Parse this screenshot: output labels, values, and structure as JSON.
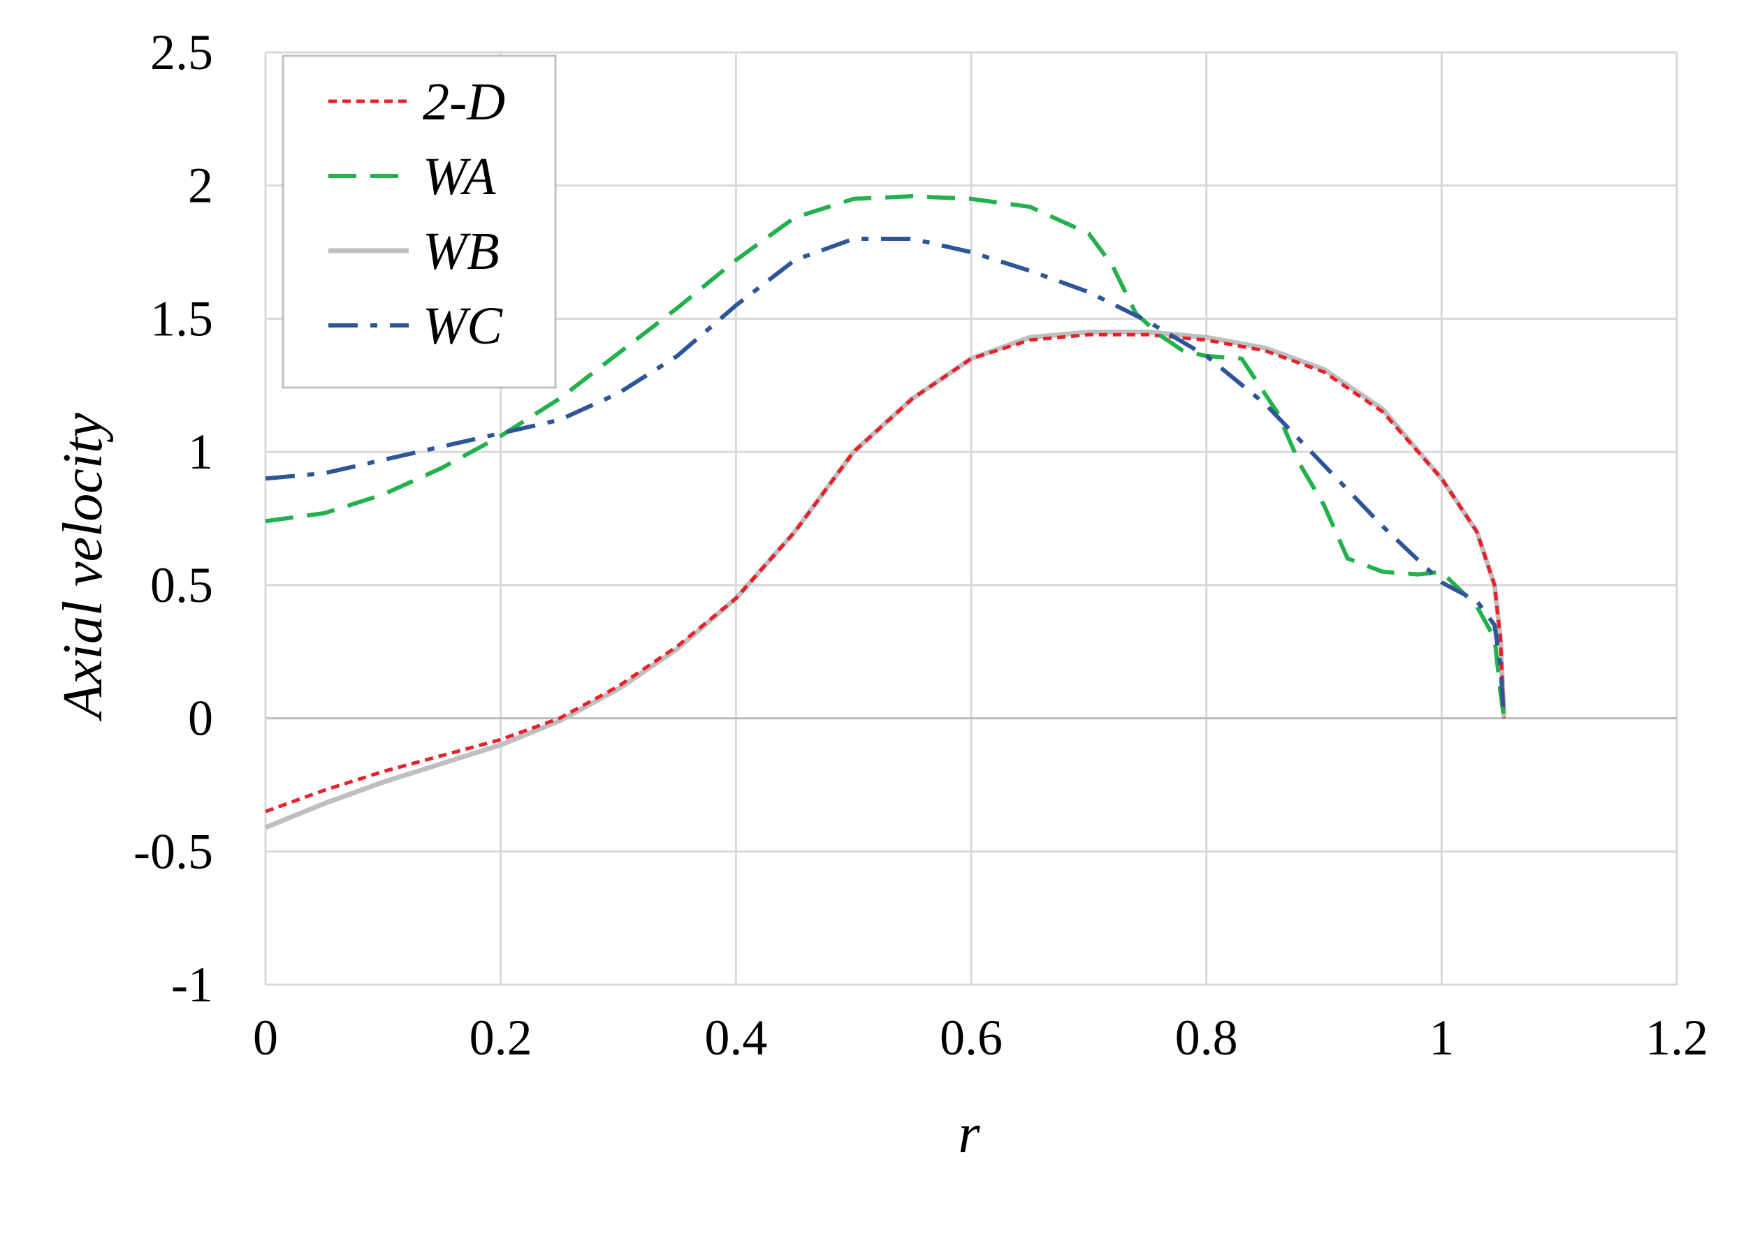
{
  "chart_data": {
    "type": "line",
    "xlabel": "r",
    "ylabel": "Axial velocity",
    "xlim": [
      0,
      1.2
    ],
    "ylim": [
      -1,
      2.5
    ],
    "xticks": [
      "0",
      "0.2",
      "0.4",
      "0.6",
      "0.8",
      "1",
      "1.2"
    ],
    "yticks": [
      "-1",
      "-0.5",
      "0",
      "0.5",
      "1",
      "1.5",
      "2",
      "2.5"
    ],
    "grid": true,
    "legend_position": "top-left",
    "series": [
      {
        "name": "2-D",
        "color": "#e8202a",
        "style": "dotted",
        "x": [
          0,
          0.05,
          0.1,
          0.15,
          0.2,
          0.25,
          0.3,
          0.35,
          0.4,
          0.45,
          0.5,
          0.55,
          0.6,
          0.65,
          0.7,
          0.75,
          0.8,
          0.85,
          0.9,
          0.95,
          1.0,
          1.03,
          1.045,
          1.05,
          1.053
        ],
        "y": [
          -0.35,
          -0.27,
          -0.2,
          -0.14,
          -0.08,
          0.0,
          0.12,
          0.27,
          0.45,
          0.7,
          1.0,
          1.2,
          1.35,
          1.42,
          1.44,
          1.44,
          1.42,
          1.38,
          1.3,
          1.15,
          0.9,
          0.7,
          0.5,
          0.3,
          0.0
        ]
      },
      {
        "name": "WA",
        "color": "#22b14c",
        "style": "dashed",
        "x": [
          0,
          0.05,
          0.1,
          0.15,
          0.2,
          0.25,
          0.3,
          0.35,
          0.4,
          0.45,
          0.5,
          0.55,
          0.6,
          0.65,
          0.7,
          0.72,
          0.74,
          0.76,
          0.78,
          0.8,
          0.83,
          0.86,
          0.88,
          0.9,
          0.92,
          0.95,
          0.98,
          1.0,
          1.03,
          1.045,
          1.05,
          1.053
        ],
        "y": [
          0.74,
          0.77,
          0.84,
          0.94,
          1.06,
          1.2,
          1.37,
          1.54,
          1.72,
          1.88,
          1.95,
          1.96,
          1.95,
          1.92,
          1.82,
          1.7,
          1.52,
          1.44,
          1.38,
          1.36,
          1.35,
          1.15,
          0.95,
          0.8,
          0.6,
          0.55,
          0.54,
          0.55,
          0.42,
          0.3,
          0.1,
          0.0
        ]
      },
      {
        "name": "WB",
        "color": "#bfbfbf",
        "style": "solid",
        "x": [
          0,
          0.05,
          0.1,
          0.15,
          0.2,
          0.25,
          0.3,
          0.35,
          0.4,
          0.45,
          0.5,
          0.55,
          0.6,
          0.65,
          0.7,
          0.75,
          0.8,
          0.85,
          0.9,
          0.95,
          1.0,
          1.03,
          1.045,
          1.05,
          1.053
        ],
        "y": [
          -0.41,
          -0.32,
          -0.24,
          -0.17,
          -0.1,
          -0.01,
          0.11,
          0.26,
          0.45,
          0.7,
          1.0,
          1.2,
          1.35,
          1.43,
          1.45,
          1.45,
          1.43,
          1.39,
          1.31,
          1.16,
          0.9,
          0.7,
          0.5,
          0.3,
          0.0
        ]
      },
      {
        "name": "WC",
        "color": "#2e5597",
        "style": "dashdot",
        "x": [
          0,
          0.05,
          0.1,
          0.15,
          0.2,
          0.25,
          0.3,
          0.35,
          0.4,
          0.45,
          0.5,
          0.55,
          0.6,
          0.65,
          0.7,
          0.75,
          0.8,
          0.85,
          0.9,
          0.95,
          1.0,
          1.03,
          1.045,
          1.05,
          1.053
        ],
        "y": [
          0.9,
          0.92,
          0.97,
          1.02,
          1.07,
          1.12,
          1.22,
          1.36,
          1.55,
          1.72,
          1.8,
          1.8,
          1.75,
          1.68,
          1.6,
          1.49,
          1.36,
          1.18,
          0.95,
          0.72,
          0.51,
          0.44,
          0.35,
          0.2,
          0.0
        ]
      }
    ]
  }
}
